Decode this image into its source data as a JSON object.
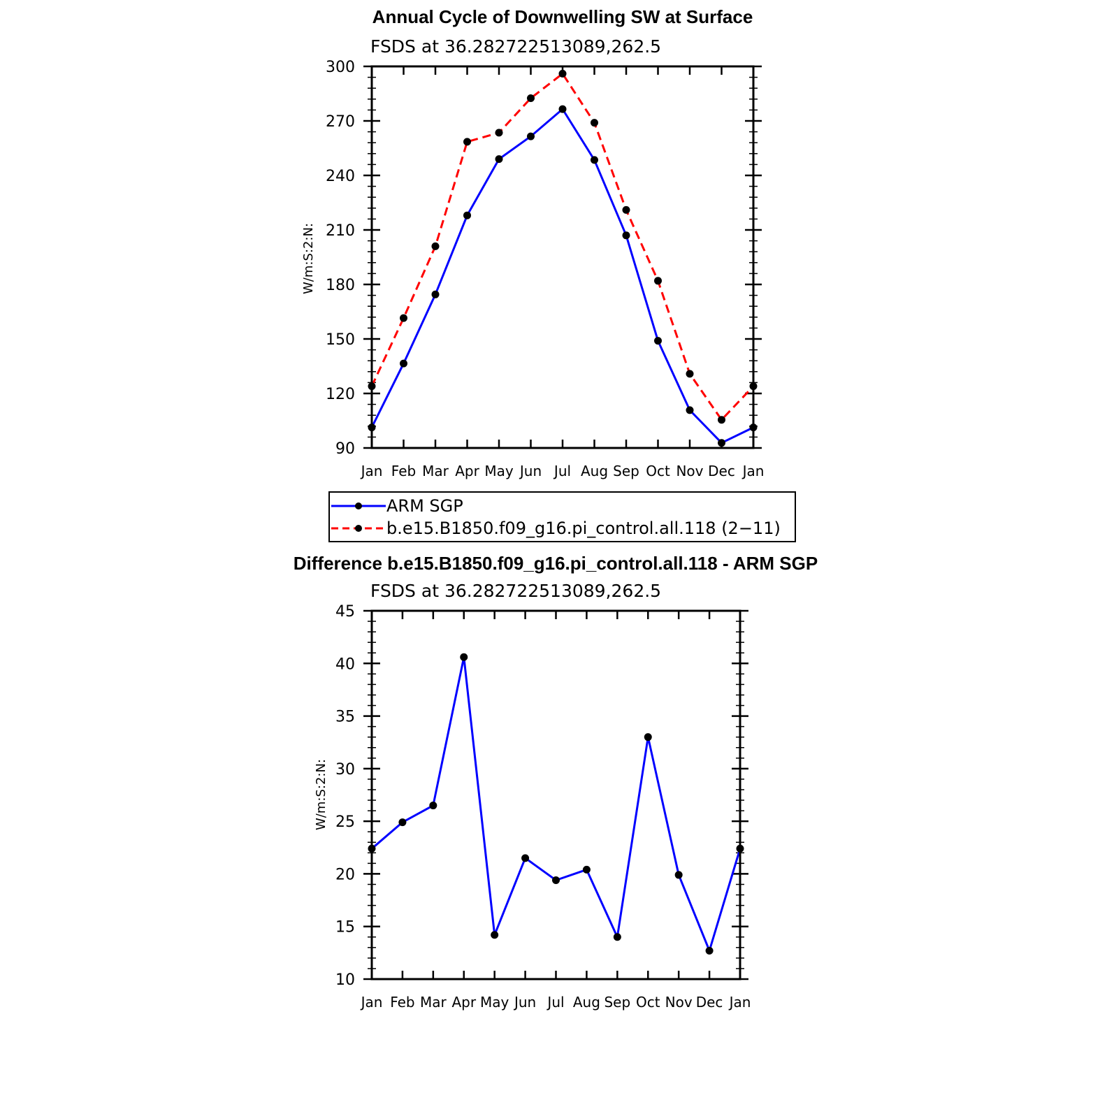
{
  "chart_data": [
    {
      "type": "line",
      "title": "Annual Cycle of Downwelling SW at Surface",
      "subtitle": "FSDS at 36.282722513089,262.5",
      "ylabel": "W/m:S:2:N:",
      "xlabel": "",
      "categories": [
        "Jan",
        "Feb",
        "Mar",
        "Apr",
        "May",
        "Jun",
        "Jul",
        "Aug",
        "Sep",
        "Oct",
        "Nov",
        "Dec",
        "Jan"
      ],
      "ylim": [
        90,
        300
      ],
      "yticks": [
        90,
        120,
        150,
        180,
        210,
        240,
        270,
        300
      ],
      "series": [
        {
          "name": "ARM SGP",
          "color": "#0000ff",
          "dash": "solid",
          "values": [
            101.3,
            136.5,
            174.5,
            218,
            249,
            261.5,
            276.5,
            248.5,
            207,
            149,
            110.8,
            92.8,
            101.3
          ]
        },
        {
          "name": "b.e15.B1850.f09_g16.pi_control.all.118 (2−11)",
          "color": "#ff0000",
          "dash": "dashed",
          "values": [
            124,
            161.5,
            201,
            258.5,
            263.5,
            282.5,
            296,
            269,
            221,
            182,
            130.8,
            105.5,
            124
          ]
        }
      ],
      "legend": "below"
    },
    {
      "type": "line",
      "title": "Difference b.e15.B1850.f09_g16.pi_control.all.118 - ARM SGP",
      "subtitle": "FSDS at 36.282722513089,262.5",
      "ylabel": "W/m:S:2:N:",
      "xlabel": "",
      "categories": [
        "Jan",
        "Feb",
        "Mar",
        "Apr",
        "May",
        "Jun",
        "Jul",
        "Aug",
        "Sep",
        "Oct",
        "Nov",
        "Dec",
        "Jan"
      ],
      "ylim": [
        10,
        45
      ],
      "yticks": [
        10,
        15,
        20,
        25,
        30,
        35,
        40,
        45
      ],
      "series": [
        {
          "name": "Difference",
          "color": "#0000ff",
          "dash": "solid",
          "values": [
            22.4,
            24.9,
            26.5,
            40.6,
            14.2,
            21.5,
            19.4,
            20.4,
            14.0,
            33.0,
            19.9,
            12.7,
            22.4
          ]
        }
      ]
    }
  ]
}
